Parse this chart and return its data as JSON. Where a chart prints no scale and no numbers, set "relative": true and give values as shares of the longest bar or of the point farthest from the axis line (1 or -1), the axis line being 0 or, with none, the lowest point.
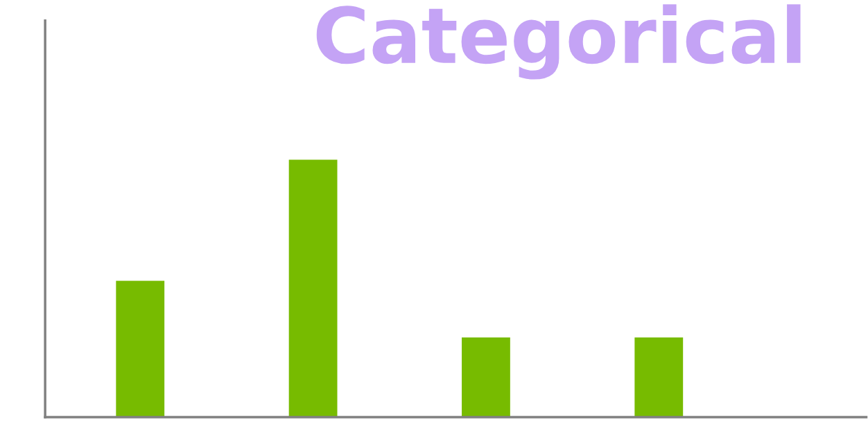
{
  "chart_data": {
    "type": "bar",
    "title": "Categorical",
    "categories": [
      null,
      null,
      null,
      null
    ],
    "values": [
      0.53,
      1,
      0.31,
      0.31
    ],
    "color": "#77bb00",
    "relative": true,
    "grid": false,
    "legend": false
  }
}
